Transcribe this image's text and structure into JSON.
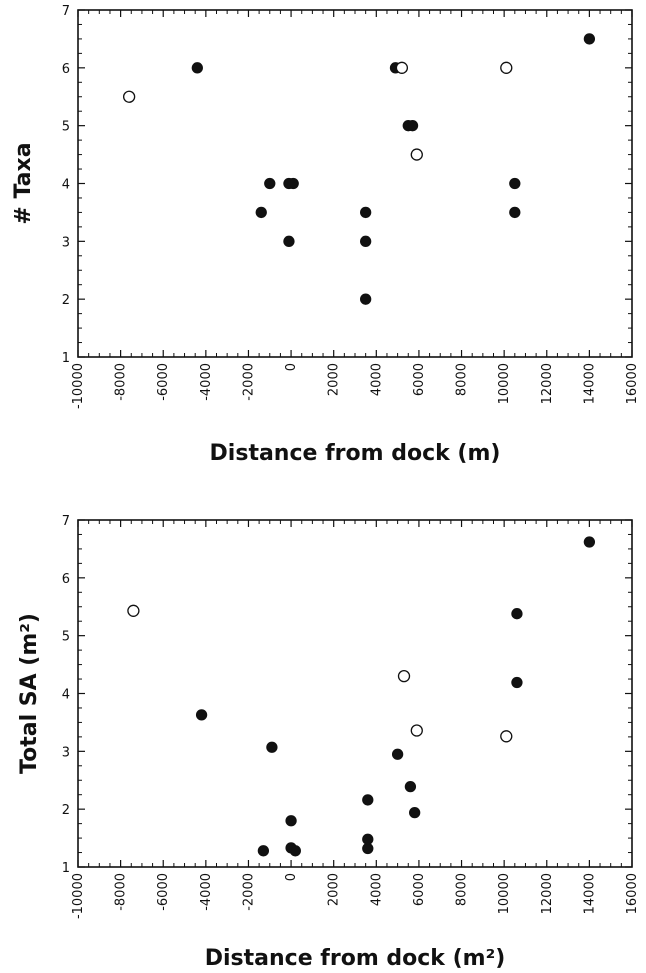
{
  "chart_data": [
    {
      "type": "scatter",
      "title": "",
      "xlabel": "Distance from dock (m)",
      "ylabel": "# Taxa",
      "xlim": [
        -10000,
        16000
      ],
      "ylim": [
        1,
        7
      ],
      "xticks": [
        "-10000",
        "-8000",
        "-6000",
        "-4000",
        "-2000",
        "0",
        "2000",
        "4000",
        "6000",
        "8000",
        "10000",
        "12000",
        "14000",
        "16000"
      ],
      "yticks": [
        "1",
        "2",
        "3",
        "4",
        "5",
        "6",
        "7"
      ],
      "grid": false,
      "series": [
        {
          "marker": "filled",
          "color": "#111111",
          "points": [
            {
              "x": -4400,
              "y": 6
            },
            {
              "x": -1400,
              "y": 3.5
            },
            {
              "x": -1000,
              "y": 4
            },
            {
              "x": -100,
              "y": 4
            },
            {
              "x": 100,
              "y": 4
            },
            {
              "x": -100,
              "y": 3
            },
            {
              "x": 3500,
              "y": 3.5
            },
            {
              "x": 3500,
              "y": 3
            },
            {
              "x": 3500,
              "y": 2
            },
            {
              "x": 4900,
              "y": 6
            },
            {
              "x": 5500,
              "y": 5
            },
            {
              "x": 5700,
              "y": 5
            },
            {
              "x": 10500,
              "y": 4
            },
            {
              "x": 10500,
              "y": 3.5
            },
            {
              "x": 14000,
              "y": 6.5
            }
          ]
        },
        {
          "marker": "open",
          "color": "#111111",
          "points": [
            {
              "x": -7600,
              "y": 5.5
            },
            {
              "x": 5200,
              "y": 6
            },
            {
              "x": 5900,
              "y": 4.5
            },
            {
              "x": 10100,
              "y": 6
            }
          ]
        }
      ]
    },
    {
      "type": "scatter",
      "title": "",
      "xlabel": "Distance from dock (m²)",
      "ylabel": "Total SA (m²)",
      "xlim": [
        -10000,
        16000
      ],
      "ylim": [
        1,
        7
      ],
      "xticks": [
        "-10000",
        "-8000",
        "-6000",
        "-4000",
        "-2000",
        "0",
        "2000",
        "4000",
        "6000",
        "8000",
        "10000",
        "12000",
        "14000",
        "16000"
      ],
      "yticks": [
        "1",
        "2",
        "3",
        "4",
        "5",
        "6",
        "7"
      ],
      "grid": false,
      "series": [
        {
          "marker": "filled",
          "color": "#111111",
          "points": [
            {
              "x": -4200,
              "y": 3.63
            },
            {
              "x": -1300,
              "y": 1.28
            },
            {
              "x": -900,
              "y": 3.07
            },
            {
              "x": 0,
              "y": 1.8
            },
            {
              "x": 0,
              "y": 1.33
            },
            {
              "x": 200,
              "y": 1.28
            },
            {
              "x": 3600,
              "y": 2.16
            },
            {
              "x": 3600,
              "y": 1.48
            },
            {
              "x": 3600,
              "y": 1.32
            },
            {
              "x": 5000,
              "y": 2.95
            },
            {
              "x": 5600,
              "y": 2.39
            },
            {
              "x": 5800,
              "y": 1.94
            },
            {
              "x": 10600,
              "y": 5.38
            },
            {
              "x": 10600,
              "y": 4.19
            },
            {
              "x": 14000,
              "y": 6.62
            }
          ]
        },
        {
          "marker": "open",
          "color": "#111111",
          "points": [
            {
              "x": -7400,
              "y": 5.43
            },
            {
              "x": 5300,
              "y": 4.3
            },
            {
              "x": 5900,
              "y": 3.36
            },
            {
              "x": 10100,
              "y": 3.26
            }
          ]
        }
      ]
    }
  ]
}
